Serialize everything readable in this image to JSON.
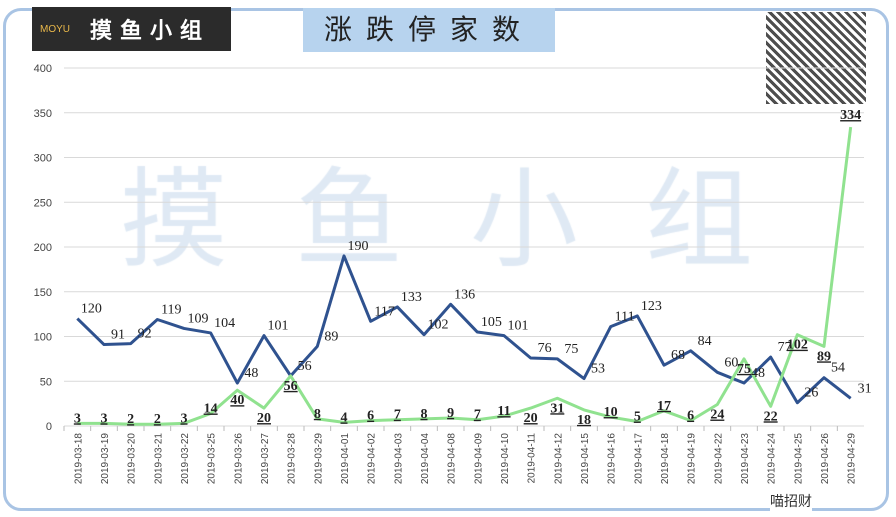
{
  "header": {
    "logo_text": "摸鱼小组",
    "logo_mark": "MOYU",
    "title": "涨跌停家数",
    "watermark": "摸鱼小组",
    "brand": "喵招财"
  },
  "colors": {
    "series1": "#2f528f",
    "series2": "#90e28f"
  },
  "chart_data": {
    "type": "line",
    "title": "涨跌停家数",
    "categories": [
      "2019-03-18",
      "2019-03-19",
      "2019-03-20",
      "2019-03-21",
      "2019-03-22",
      "2019-03-25",
      "2019-03-26",
      "2019-03-27",
      "2019-03-28",
      "2019-03-29",
      "2019-04-01",
      "2019-04-02",
      "2019-04-03",
      "2019-04-04",
      "2019-04-08",
      "2019-04-09",
      "2019-04-10",
      "2019-04-11",
      "2019-04-12",
      "2019-04-15",
      "2019-04-16",
      "2019-04-17",
      "2019-04-18",
      "2019-04-19",
      "2019-04-22",
      "2019-04-23",
      "2019-04-24",
      "2019-04-25",
      "2019-04-26",
      "2019-04-29"
    ],
    "series": [
      {
        "values": [
          120,
          91,
          92,
          119,
          109,
          104,
          48,
          101,
          56,
          89,
          190,
          117,
          133,
          102,
          136,
          105,
          101,
          76,
          75,
          53,
          111,
          123,
          68,
          84,
          60,
          48,
          77,
          26,
          54,
          31
        ]
      },
      {
        "values": [
          3,
          3,
          2,
          2,
          3,
          14,
          40,
          20,
          56,
          8,
          4,
          6,
          7,
          8,
          9,
          7,
          11,
          20,
          31,
          18,
          10,
          5,
          17,
          6,
          24,
          75,
          22,
          102,
          89,
          334
        ]
      }
    ],
    "ylim": [
      0,
      400
    ],
    "yticks": [
      0,
      50,
      100,
      150,
      200,
      250,
      300,
      350,
      400
    ],
    "grid": true
  }
}
